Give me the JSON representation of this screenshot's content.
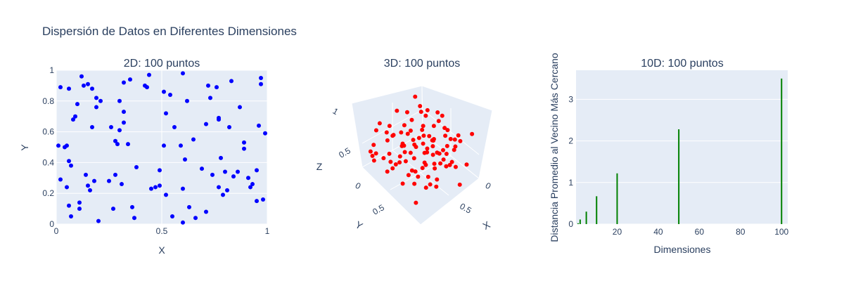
{
  "figure": {
    "title": "Dispersión de Datos en Diferentes Dimensiones"
  },
  "chart_data": [
    {
      "type": "scatter",
      "title": "2D: 100 puntos",
      "xlabel": "X",
      "ylabel": "Y",
      "xlim": [
        0,
        1
      ],
      "ylim": [
        0,
        1
      ],
      "xticks": [
        0,
        0.5,
        1
      ],
      "yticks": [
        0,
        0.2,
        0.4,
        0.6,
        0.8,
        1
      ],
      "tick_labels_x": [
        "0",
        "0.5",
        "1"
      ],
      "tick_labels_y": [
        "0",
        "0.2",
        "0.4",
        "0.6",
        "0.8",
        "1"
      ],
      "color": "#0000ff",
      "grid": true,
      "points": [
        [
          0.01,
          0.51
        ],
        [
          0.02,
          0.89
        ],
        [
          0.02,
          0.29
        ],
        [
          0.04,
          0.5
        ],
        [
          0.05,
          0.51
        ],
        [
          0.05,
          0.24
        ],
        [
          0.06,
          0.41
        ],
        [
          0.06,
          0.12
        ],
        [
          0.06,
          0.88
        ],
        [
          0.07,
          0.38
        ],
        [
          0.07,
          0.05
        ],
        [
          0.08,
          0.68
        ],
        [
          0.09,
          0.7
        ],
        [
          0.1,
          0.78
        ],
        [
          0.11,
          0.14
        ],
        [
          0.11,
          0.1
        ],
        [
          0.12,
          0.96
        ],
        [
          0.13,
          0.9
        ],
        [
          0.14,
          0.32
        ],
        [
          0.15,
          0.91
        ],
        [
          0.15,
          0.25
        ],
        [
          0.16,
          0.22
        ],
        [
          0.17,
          0.88
        ],
        [
          0.17,
          0.63
        ],
        [
          0.18,
          0.28
        ],
        [
          0.19,
          0.76
        ],
        [
          0.19,
          0.82
        ],
        [
          0.2,
          0.02
        ],
        [
          0.21,
          0.8
        ],
        [
          0.25,
          0.28
        ],
        [
          0.26,
          0.63
        ],
        [
          0.27,
          0.1
        ],
        [
          0.28,
          0.54
        ],
        [
          0.28,
          0.32
        ],
        [
          0.29,
          0.52
        ],
        [
          0.3,
          0.8
        ],
        [
          0.3,
          0.61
        ],
        [
          0.31,
          0.26
        ],
        [
          0.32,
          0.66
        ],
        [
          0.32,
          0.73
        ],
        [
          0.32,
          0.92
        ],
        [
          0.34,
          0.52
        ],
        [
          0.35,
          0.94
        ],
        [
          0.36,
          0.11
        ],
        [
          0.37,
          0.04
        ],
        [
          0.38,
          0.37
        ],
        [
          0.42,
          0.9
        ],
        [
          0.43,
          0.89
        ],
        [
          0.44,
          0.97
        ],
        [
          0.45,
          0.23
        ],
        [
          0.47,
          0.24
        ],
        [
          0.49,
          0.25
        ],
        [
          0.49,
          0.35
        ],
        [
          0.51,
          0.86
        ],
        [
          0.51,
          0.51
        ],
        [
          0.52,
          0.72
        ],
        [
          0.52,
          0.19
        ],
        [
          0.54,
          0.84
        ],
        [
          0.55,
          0.05
        ],
        [
          0.56,
          0.63
        ],
        [
          0.59,
          0.51
        ],
        [
          0.6,
          0.98
        ],
        [
          0.6,
          0.01
        ],
        [
          0.6,
          0.23
        ],
        [
          0.61,
          0.42
        ],
        [
          0.62,
          0.8
        ],
        [
          0.63,
          0.11
        ],
        [
          0.65,
          0.55
        ],
        [
          0.66,
          0.04
        ],
        [
          0.69,
          0.36
        ],
        [
          0.71,
          0.65
        ],
        [
          0.71,
          0.08
        ],
        [
          0.72,
          0.9
        ],
        [
          0.73,
          0.82
        ],
        [
          0.74,
          0.32
        ],
        [
          0.76,
          0.89
        ],
        [
          0.77,
          0.24
        ],
        [
          0.77,
          0.69
        ],
        [
          0.77,
          0.68
        ],
        [
          0.78,
          0.43
        ],
        [
          0.79,
          0.19
        ],
        [
          0.8,
          0.34
        ],
        [
          0.81,
          0.22
        ],
        [
          0.82,
          0.63
        ],
        [
          0.83,
          0.93
        ],
        [
          0.84,
          0.31
        ],
        [
          0.86,
          0.34
        ],
        [
          0.87,
          0.76
        ],
        [
          0.89,
          0.53
        ],
        [
          0.89,
          0.49
        ],
        [
          0.91,
          0.3
        ],
        [
          0.92,
          0.24
        ],
        [
          0.93,
          0.26
        ],
        [
          0.95,
          0.15
        ],
        [
          0.95,
          0.35
        ],
        [
          0.96,
          0.64
        ],
        [
          0.97,
          0.95
        ],
        [
          0.97,
          0.91
        ],
        [
          0.98,
          0.16
        ],
        [
          0.99,
          0.59
        ]
      ]
    },
    {
      "type": "scatter3d",
      "title": "3D: 100 puntos",
      "xlabel": "X",
      "ylabel": "Y",
      "zlabel": "Z",
      "zticks": [
        "0",
        "0.5",
        "1"
      ],
      "yticks": [
        "0",
        "0.5"
      ],
      "xticks": [
        "0",
        "0.5"
      ],
      "color": "#ff0000",
      "points": [
        [
          0.12,
          0.88,
          0.8
        ],
        [
          0.55,
          0.1,
          0.66
        ],
        [
          0.3,
          0.2,
          0.91
        ],
        [
          0.81,
          0.63,
          0.14
        ],
        [
          0.44,
          0.52,
          0.5
        ],
        [
          0.09,
          0.34,
          0.77
        ],
        [
          0.72,
          0.15,
          0.44
        ],
        [
          0.63,
          0.82,
          0.3
        ],
        [
          0.21,
          0.57,
          0.12
        ],
        [
          0.95,
          0.4,
          0.58
        ],
        [
          0.38,
          0.71,
          0.88
        ],
        [
          0.5,
          0.06,
          0.25
        ],
        [
          0.17,
          0.93,
          0.4
        ],
        [
          0.86,
          0.26,
          0.72
        ],
        [
          0.27,
          0.45,
          0.63
        ],
        [
          0.68,
          0.77,
          0.95
        ],
        [
          0.04,
          0.62,
          0.33
        ],
        [
          0.59,
          0.35,
          0.07
        ],
        [
          0.46,
          0.98,
          0.7
        ],
        [
          0.91,
          0.12,
          0.29
        ],
        [
          0.33,
          0.29,
          0.47
        ],
        [
          0.76,
          0.54,
          0.83
        ],
        [
          0.14,
          0.08,
          0.56
        ],
        [
          0.52,
          0.66,
          0.18
        ],
        [
          0.99,
          0.83,
          0.61
        ],
        [
          0.25,
          0.73,
          0.02
        ],
        [
          0.64,
          0.42,
          0.75
        ],
        [
          0.07,
          0.19,
          0.97
        ],
        [
          0.83,
          0.91,
          0.37
        ],
        [
          0.41,
          0.31,
          0.21
        ],
        [
          0.19,
          0.48,
          0.69
        ],
        [
          0.7,
          0.03,
          0.52
        ],
        [
          0.57,
          0.59,
          0.86
        ],
        [
          0.02,
          0.85,
          0.15
        ],
        [
          0.88,
          0.37,
          0.43
        ],
        [
          0.35,
          0.14,
          0.31
        ],
        [
          0.61,
          0.95,
          0.64
        ],
        [
          0.23,
          0.24,
          0.84
        ],
        [
          0.79,
          0.68,
          0.09
        ],
        [
          0.48,
          0.44,
          0.55
        ],
        [
          0.11,
          0.6,
          0.48
        ],
        [
          0.93,
          0.05,
          0.9
        ],
        [
          0.3,
          0.81,
          0.26
        ],
        [
          0.66,
          0.22,
          0.35
        ],
        [
          0.45,
          0.75,
          0.74
        ],
        [
          0.05,
          0.39,
          0.06
        ],
        [
          0.84,
          0.49,
          0.51
        ],
        [
          0.53,
          0.17,
          0.99
        ],
        [
          0.16,
          0.96,
          0.59
        ],
        [
          0.74,
          0.3,
          0.22
        ],
        [
          0.37,
          0.64,
          0.41
        ],
        [
          0.97,
          0.71,
          0.78
        ],
        [
          0.22,
          0.02,
          0.38
        ],
        [
          0.58,
          0.87,
          0.11
        ],
        [
          0.09,
          0.51,
          0.92
        ],
        [
          0.69,
          0.11,
          0.6
        ],
        [
          0.42,
          0.36,
          0.04
        ],
        [
          0.87,
          0.93,
          0.68
        ],
        [
          0.28,
          0.27,
          0.53
        ],
        [
          0.62,
          0.58,
          0.27
        ],
        [
          0.01,
          0.72,
          0.73
        ],
        [
          0.78,
          0.18,
          0.16
        ],
        [
          0.49,
          0.9,
          0.45
        ],
        [
          0.15,
          0.32,
          0.65
        ],
        [
          0.92,
          0.62,
          0.34
        ],
        [
          0.34,
          0.07,
          0.81
        ],
        [
          0.56,
          0.47,
          0.2
        ],
        [
          0.26,
          0.79,
          0.96
        ],
        [
          0.8,
          0.4,
          0.49
        ],
        [
          0.43,
          0.23,
          0.12
        ],
        [
          0.08,
          0.67,
          0.57
        ],
        [
          0.71,
          0.86,
          0.87
        ],
        [
          0.31,
          0.13,
          0.24
        ],
        [
          0.65,
          0.53,
          0.67
        ],
        [
          0.2,
          0.99,
          0.32
        ],
        [
          0.96,
          0.28,
          0.03
        ],
        [
          0.39,
          0.61,
          0.79
        ],
        [
          0.54,
          0.04,
          0.42
        ],
        [
          0.13,
          0.43,
          0.17
        ],
        [
          0.85,
          0.76,
          0.93
        ],
        [
          0.47,
          0.33,
          0.62
        ],
        [
          0.03,
          0.89,
          0.28
        ],
        [
          0.73,
          0.09,
          0.71
        ],
        [
          0.29,
          0.55,
          0.08
        ],
        [
          0.6,
          0.7,
          0.54
        ],
        [
          0.18,
          0.16,
          0.44
        ],
        [
          0.9,
          0.5,
          0.85
        ],
        [
          0.36,
          0.92,
          0.19
        ],
        [
          0.67,
          0.25,
          0.76
        ],
        [
          0.24,
          0.38,
          0.36
        ],
        [
          0.82,
          0.84,
          0.46
        ],
        [
          0.51,
          0.21,
          0.89
        ],
        [
          0.1,
          0.74,
          0.1
        ],
        [
          0.75,
          0.46,
          0.63
        ],
        [
          0.4,
          0.01,
          0.5
        ],
        [
          0.94,
          0.65,
          0.23
        ],
        [
          0.32,
          0.78,
          0.82
        ],
        [
          0.63,
          0.31,
          0.39
        ],
        [
          0.06,
          0.1,
          0.7
        ],
        [
          0.89,
          0.94,
          0.05
        ]
      ]
    },
    {
      "type": "bar",
      "title": "10D: 100 puntos",
      "xlabel": "Dimensiones",
      "ylabel": "Distancia Promedio al Vecino Más Cercano",
      "xlim": [
        0,
        103
      ],
      "ylim": [
        0,
        3.7
      ],
      "xticks": [
        20,
        40,
        60,
        80,
        100
      ],
      "yticks": [
        0,
        1,
        2,
        3
      ],
      "tick_labels_x": [
        "20",
        "40",
        "60",
        "80",
        "100"
      ],
      "tick_labels_y": [
        "0",
        "1",
        "2",
        "3"
      ],
      "color": "#008000",
      "grid": true,
      "x": [
        1,
        2,
        5,
        10,
        20,
        50,
        100
      ],
      "values": [
        0.02,
        0.11,
        0.3,
        0.67,
        1.22,
        2.28,
        3.5
      ]
    }
  ]
}
